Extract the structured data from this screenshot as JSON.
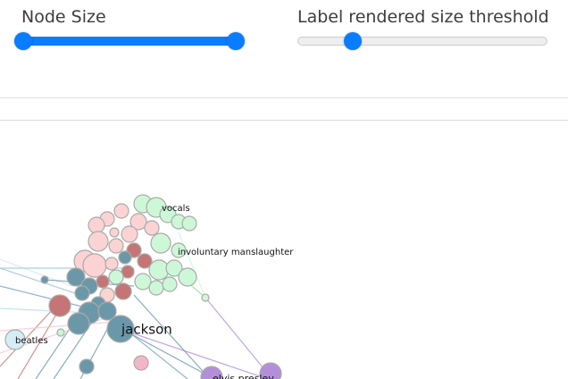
{
  "controls": {
    "node_size": {
      "label": "Node Size"
    },
    "label_threshold": {
      "label": "Label rendered size threshold"
    }
  },
  "graph": {
    "labels": [
      "vocals",
      "involuntary manslaughter",
      "jackson",
      "beatles",
      "elvis presley"
    ]
  }
}
